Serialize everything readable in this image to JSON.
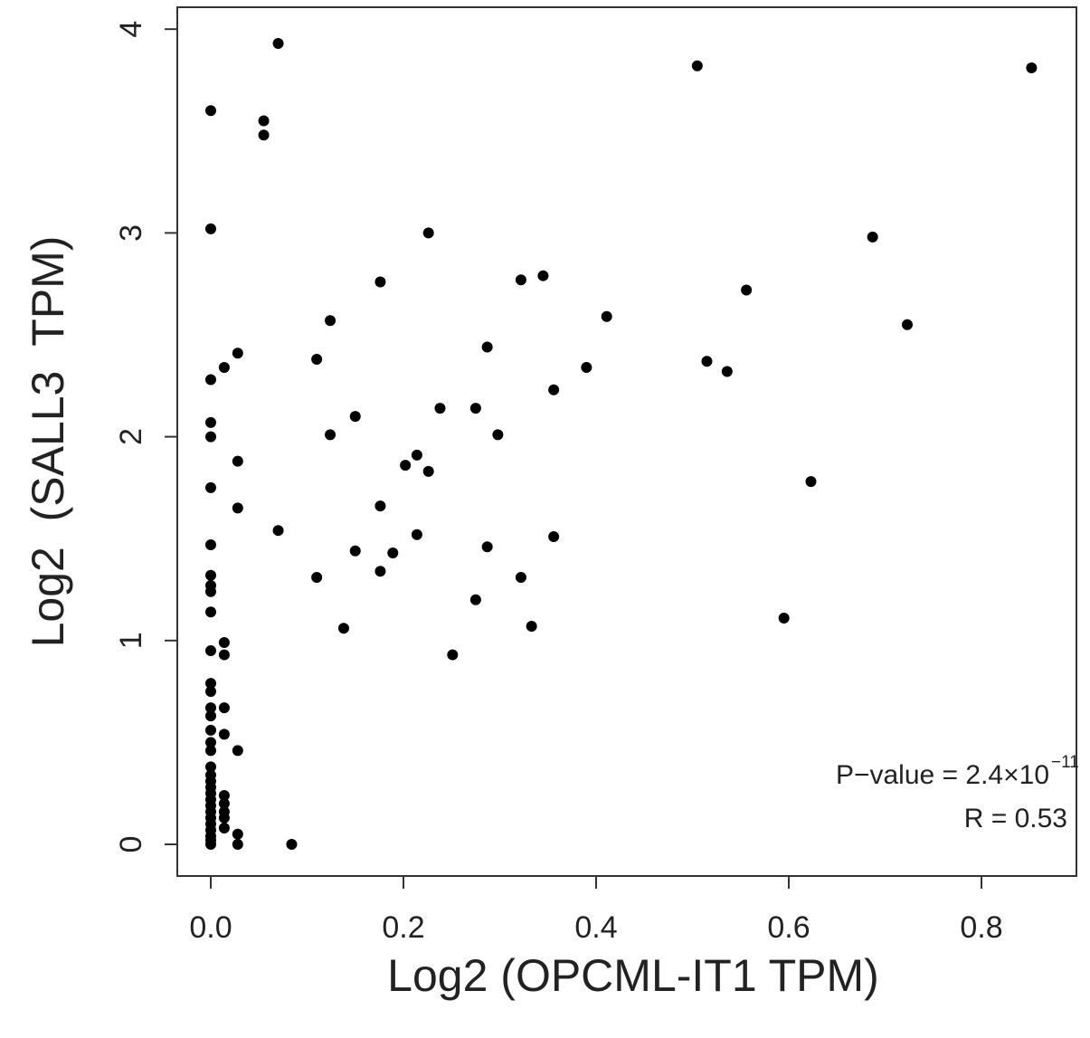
{
  "chart_data": {
    "type": "scatter",
    "title": "",
    "xlabel": "Log2 (OPCML-IT1 TPM)",
    "ylabel": "Log2  (SALL3  TPM)",
    "xlim": [
      -0.035,
      0.9
    ],
    "ylim": [
      -0.16,
      4.1
    ],
    "xticks": [
      0.0,
      0.2,
      0.4,
      0.6,
      0.8
    ],
    "xtick_labels": [
      "0.0",
      "0.2",
      "0.4",
      "0.6",
      "0.8"
    ],
    "yticks": [
      0,
      1,
      2,
      3,
      4
    ],
    "ytick_labels": [
      "0",
      "1",
      "2",
      "3",
      "4"
    ],
    "grid": false,
    "point_color": "#000000",
    "annotations": {
      "pvalue_prefix": "P−value = 2.4×10",
      "pvalue_exponent": "−11",
      "r": "R = 0.53"
    },
    "points": {
      "x": [
        0.07,
        0.505,
        0.852,
        0,
        0.055,
        0.055,
        0,
        0.226,
        0.687,
        0.345,
        0.322,
        0.176,
        0.556,
        0.411,
        0.124,
        0.723,
        0.287,
        0.028,
        0.11,
        0.515,
        0.014,
        0.39,
        0.536,
        0,
        0.356,
        0.238,
        0.275,
        0.15,
        0,
        0,
        0.124,
        0.298,
        0.214,
        0.028,
        0.202,
        0.226,
        0.623,
        0,
        0.176,
        0.028,
        0.07,
        0.214,
        0.356,
        0,
        0.287,
        0.15,
        0.189,
        0.176,
        0,
        0.322,
        0.11,
        0,
        0,
        0.275,
        0,
        0.595,
        0.333,
        0.138,
        0.014,
        0.014,
        0,
        0.251,
        0,
        0,
        0,
        0,
        0,
        0,
        0,
        0,
        0,
        0,
        0,
        0,
        0,
        0,
        0,
        0,
        0,
        0,
        0,
        0,
        0,
        0.014,
        0.014,
        0.014,
        0.014,
        0.014,
        0.014,
        0.014,
        0.028,
        0.028,
        0.028,
        0.084
      ],
      "y": [
        3.93,
        3.82,
        3.81,
        3.6,
        3.55,
        3.48,
        3.02,
        3.0,
        2.98,
        2.79,
        2.77,
        2.76,
        2.72,
        2.59,
        2.57,
        2.55,
        2.44,
        2.41,
        2.38,
        2.37,
        2.34,
        2.34,
        2.32,
        2.28,
        2.23,
        2.14,
        2.14,
        2.1,
        2.07,
        2.0,
        2.01,
        2.01,
        1.91,
        1.88,
        1.86,
        1.83,
        1.78,
        1.75,
        1.66,
        1.65,
        1.54,
        1.52,
        1.51,
        1.47,
        1.46,
        1.44,
        1.43,
        1.34,
        1.32,
        1.31,
        1.31,
        1.27,
        1.24,
        1.2,
        1.14,
        1.11,
        1.07,
        1.06,
        0.99,
        0.93,
        0.95,
        0.93,
        0.79,
        0.75,
        0.67,
        0.63,
        0.56,
        0.5,
        0.46,
        0.38,
        0.34,
        0.31,
        0.28,
        0.25,
        0.22,
        0.19,
        0.16,
        0.13,
        0.1,
        0.07,
        0.04,
        0.02,
        0.0,
        0.67,
        0.54,
        0.24,
        0.2,
        0.16,
        0.13,
        0.08,
        0.46,
        0.05,
        0.0,
        0.0
      ]
    }
  }
}
